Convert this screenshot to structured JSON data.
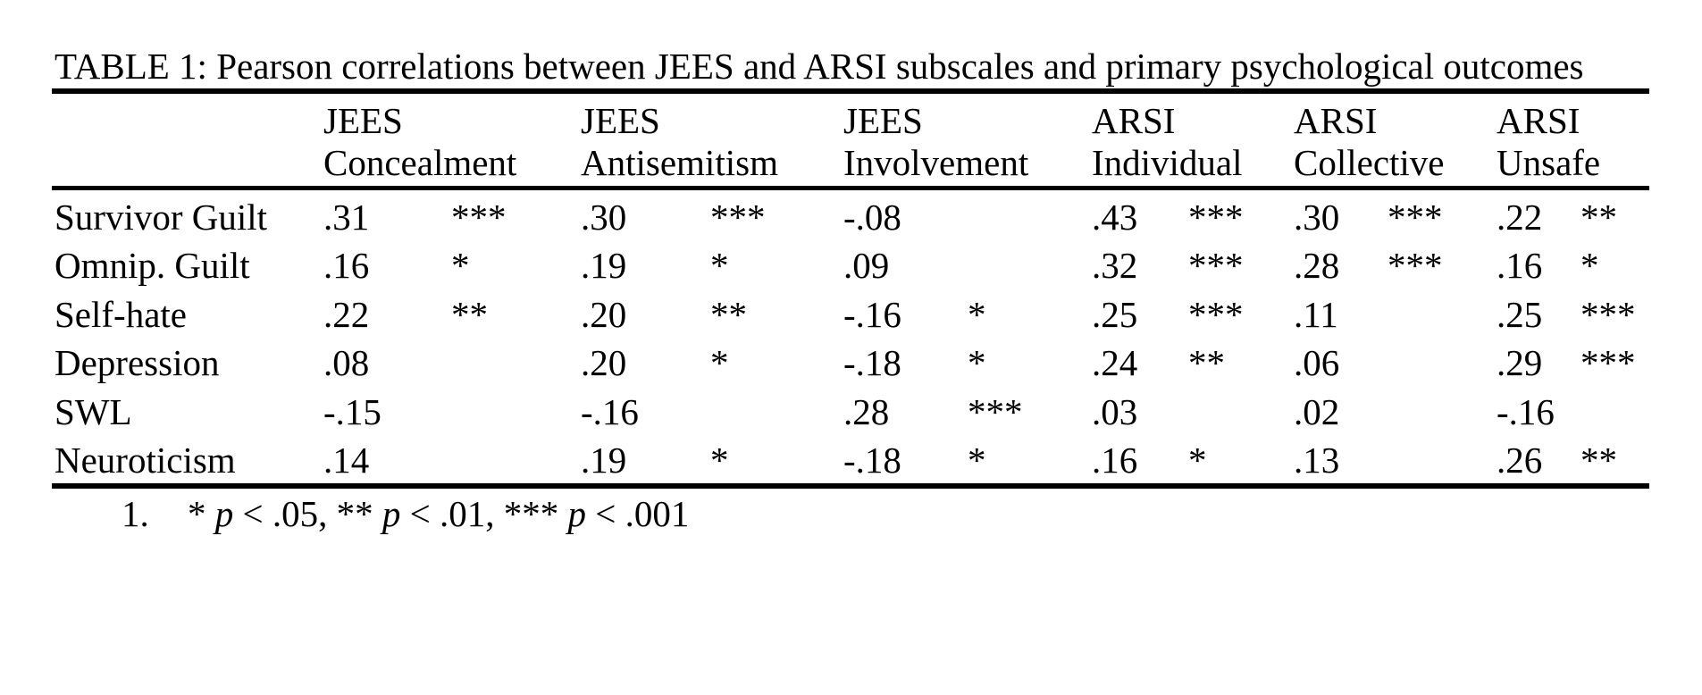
{
  "table": {
    "caption": "TABLE 1: Pearson correlations between JEES and ARSI subscales and primary psychological outcomes",
    "columns": [
      {
        "line1": "JEES",
        "line2": "Concealment"
      },
      {
        "line1": "JEES",
        "line2": "Antisemitism"
      },
      {
        "line1": "JEES",
        "line2": "Involvement"
      },
      {
        "line1": "ARSI",
        "line2": "Individual"
      },
      {
        "line1": "ARSI",
        "line2": "Collective"
      },
      {
        "line1": "ARSI",
        "line2": "Unsafe"
      }
    ],
    "rows": [
      {
        "label": "Survivor Guilt",
        "cells": [
          {
            "r": ".31",
            "sig": "***"
          },
          {
            "r": ".30",
            "sig": "***"
          },
          {
            "r": "-.08",
            "sig": ""
          },
          {
            "r": ".43",
            "sig": "***"
          },
          {
            "r": ".30",
            "sig": "***"
          },
          {
            "r": ".22",
            "sig": "**"
          }
        ]
      },
      {
        "label": "Omnip. Guilt",
        "cells": [
          {
            "r": ".16",
            "sig": "*"
          },
          {
            "r": ".19",
            "sig": "*"
          },
          {
            "r": ".09",
            "sig": ""
          },
          {
            "r": ".32",
            "sig": "***"
          },
          {
            "r": ".28",
            "sig": "***"
          },
          {
            "r": ".16",
            "sig": "*"
          }
        ]
      },
      {
        "label": "Self-hate",
        "cells": [
          {
            "r": ".22",
            "sig": "**"
          },
          {
            "r": ".20",
            "sig": "**"
          },
          {
            "r": "-.16",
            "sig": "*"
          },
          {
            "r": ".25",
            "sig": "***"
          },
          {
            "r": ".11",
            "sig": ""
          },
          {
            "r": ".25",
            "sig": "***"
          }
        ]
      },
      {
        "label": "Depression",
        "cells": [
          {
            "r": ".08",
            "sig": ""
          },
          {
            "r": ".20",
            "sig": "*"
          },
          {
            "r": "-.18",
            "sig": "*"
          },
          {
            "r": ".24",
            "sig": "**"
          },
          {
            "r": ".06",
            "sig": ""
          },
          {
            "r": ".29",
            "sig": "***"
          }
        ]
      },
      {
        "label": "SWL",
        "cells": [
          {
            "r": "-.15",
            "sig": ""
          },
          {
            "r": "-.16",
            "sig": ""
          },
          {
            "r": ".28",
            "sig": "***"
          },
          {
            "r": ".03",
            "sig": ""
          },
          {
            "r": ".02",
            "sig": ""
          },
          {
            "r": "-.16",
            "sig": ""
          }
        ]
      },
      {
        "label": "Neuroticism",
        "cells": [
          {
            "r": ".14",
            "sig": ""
          },
          {
            "r": ".19",
            "sig": "*"
          },
          {
            "r": "-.18",
            "sig": "*"
          },
          {
            "r": ".16",
            "sig": "*"
          },
          {
            "r": ".13",
            "sig": ""
          },
          {
            "r": ".26",
            "sig": "**"
          }
        ]
      }
    ],
    "footnote": {
      "number": "1.",
      "parts": [
        "* ",
        "p",
        " < .05, ** ",
        "p",
        " < .01, *** ",
        "p",
        " < .001"
      ]
    }
  }
}
